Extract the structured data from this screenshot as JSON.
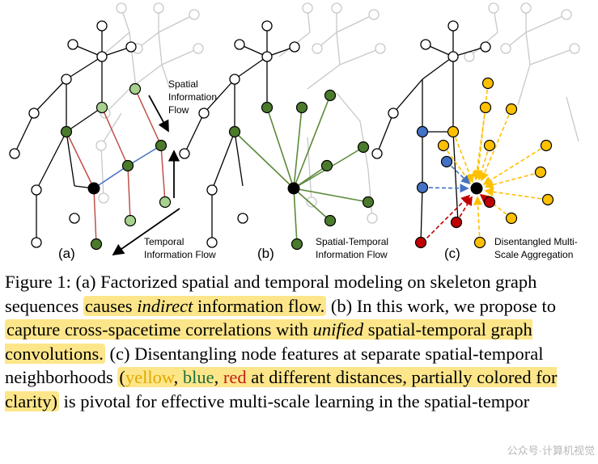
{
  "figure": {
    "panels": [
      {
        "label": "(a)",
        "annotations": [
          "Spatial",
          "Information",
          "Flow",
          "Temporal",
          "Information Flow"
        ]
      },
      {
        "label": "(b)",
        "annotations": [
          "Spatial-Temporal",
          "Information Flow"
        ]
      },
      {
        "label": "(c)",
        "annotations": [
          "Disentangled Multi-",
          "Scale Aggregation"
        ]
      }
    ],
    "colors": {
      "dark_green": "#4b7a2c",
      "light_green": "#a9d18e",
      "edge_red": "#c0504d",
      "edge_blue": "#4472c4",
      "edge_green": "#5c8a3a",
      "node_yellow": "#ffc000",
      "node_blue": "#4472c4",
      "node_red": "#c00000",
      "grey_skeleton": "#c8c8c8"
    }
  },
  "caption": {
    "figure_label": "Figure 1:",
    "part_a_label": "(a)",
    "part_a_text": "Factorized spatial and temporal modeling on skeleton graph sequences",
    "hl1_pre": "causes",
    "hl1_em": "indirect",
    "hl1_post": "information flow.",
    "part_b_label": "(b)",
    "part_b_text": "In this work, we propose to",
    "hl2_pre": "capture cross-spacetime correlations with",
    "hl2_em": "unified",
    "hl2_post": "spatial-temporal graph convolutions.",
    "part_c_label": "(c)",
    "part_c_text": "Disentangling node features at separate spatial-temporal neighborhoods",
    "hl3_open": "(",
    "hl3_yellow": "yellow",
    "hl3_sep1": ",",
    "hl3_blue": "blue",
    "hl3_sep2": ",",
    "hl3_red": "red",
    "hl3_rest": "at different distances, partially colored for clarity",
    "hl3_close": ")",
    "tail": "is pivotal for effective multi-scale learning in the spatial-tempor"
  },
  "watermark": "公众号·计算机视觉"
}
